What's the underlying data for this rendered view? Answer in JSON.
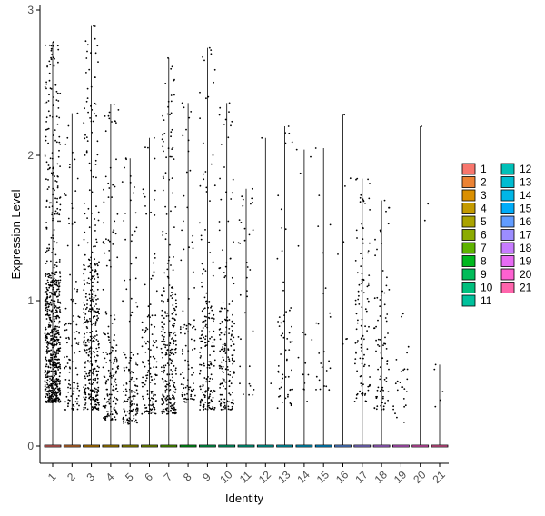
{
  "chart_data": {
    "type": "violin-jitter",
    "xlabel": "Identity",
    "ylabel": "Expression Level",
    "ylim": [
      -0.12,
      3.02
    ],
    "yticks": [
      0,
      1,
      2,
      3
    ],
    "categories": [
      "1",
      "2",
      "3",
      "4",
      "5",
      "6",
      "7",
      "8",
      "9",
      "10",
      "11",
      "12",
      "13",
      "14",
      "15",
      "16",
      "17",
      "18",
      "19",
      "20",
      "21"
    ],
    "colors": [
      "#F8766D",
      "#EB8335",
      "#DA8F00",
      "#C49A00",
      "#AAA300",
      "#8BAB00",
      "#5EB300",
      "#00B81F",
      "#00BC59",
      "#00BF7D",
      "#00C19C",
      "#00C0B8",
      "#00BCD1",
      "#00B6E6",
      "#00ACF8",
      "#619CFF",
      "#9C8DFF",
      "#C77CFF",
      "#E76BF3",
      "#FD61D1",
      "#FF65AC"
    ],
    "max_values": [
      2.78,
      2.29,
      2.89,
      2.35,
      1.98,
      2.12,
      2.67,
      2.36,
      2.74,
      2.36,
      1.77,
      2.12,
      2.2,
      2.04,
      2.05,
      2.28,
      1.84,
      1.69,
      0.91,
      2.2,
      0.56
    ],
    "bulk_low": [
      0.3,
      0.25,
      0.25,
      0.18,
      0.15,
      0.22,
      0.22,
      0.3,
      0.25,
      0.25,
      0.35,
      0.3,
      0.25,
      0.3,
      0.35,
      0.3,
      0.3,
      0.25,
      0.15,
      0.3,
      0.25
    ],
    "bulk_high": [
      1.2,
      0.95,
      1.3,
      0.8,
      0.65,
      0.9,
      1.1,
      0.9,
      1.0,
      1.0,
      1.5,
      0.4,
      1.0,
      0.8,
      0.9,
      0.55,
      1.2,
      1.1,
      0.55,
      0.5,
      0.45
    ],
    "point_counts": [
      750,
      110,
      380,
      170,
      140,
      130,
      290,
      90,
      180,
      170,
      35,
      2,
      60,
      15,
      25,
      8,
      110,
      80,
      25,
      3,
      5
    ],
    "legend": {
      "placement": "right",
      "items": [
        "1",
        "2",
        "3",
        "4",
        "5",
        "6",
        "7",
        "8",
        "9",
        "10",
        "11",
        "12",
        "13",
        "14",
        "15",
        "16",
        "17",
        "18",
        "19",
        "20",
        "21"
      ]
    }
  }
}
